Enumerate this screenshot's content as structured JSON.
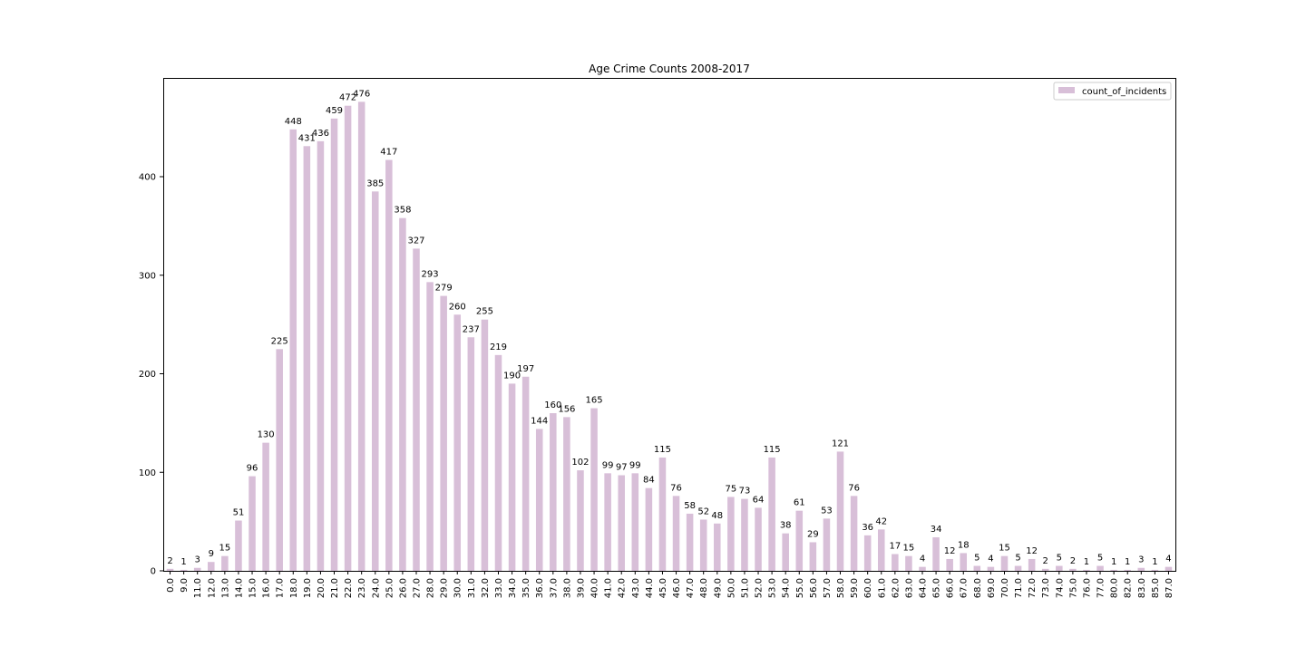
{
  "chart_data": {
    "type": "bar",
    "title": "Age Crime Counts 2008-2017",
    "xlabel": "",
    "ylabel": "",
    "ylim": [
      0,
      500
    ],
    "yticks": [
      0,
      100,
      200,
      300,
      400
    ],
    "grid": false,
    "legend_position": "top-right",
    "bar_color": "#d8bfd8",
    "categories": [
      "0.0",
      "9.0",
      "11.0",
      "12.0",
      "13.0",
      "14.0",
      "15.0",
      "16.0",
      "17.0",
      "18.0",
      "19.0",
      "20.0",
      "21.0",
      "22.0",
      "23.0",
      "24.0",
      "25.0",
      "26.0",
      "27.0",
      "28.0",
      "29.0",
      "30.0",
      "31.0",
      "32.0",
      "33.0",
      "34.0",
      "35.0",
      "36.0",
      "37.0",
      "38.0",
      "39.0",
      "40.0",
      "41.0",
      "42.0",
      "43.0",
      "44.0",
      "45.0",
      "46.0",
      "47.0",
      "48.0",
      "49.0",
      "50.0",
      "51.0",
      "52.0",
      "53.0",
      "54.0",
      "55.0",
      "56.0",
      "57.0",
      "58.0",
      "59.0",
      "60.0",
      "61.0",
      "62.0",
      "63.0",
      "64.0",
      "65.0",
      "66.0",
      "67.0",
      "68.0",
      "69.0",
      "70.0",
      "71.0",
      "72.0",
      "73.0",
      "74.0",
      "75.0",
      "76.0",
      "77.0",
      "80.0",
      "82.0",
      "83.0",
      "85.0",
      "87.0"
    ],
    "series": [
      {
        "name": "count_of_incidents",
        "values": [
          2,
          1,
          3,
          9,
          15,
          51,
          96,
          130,
          225,
          448,
          431,
          436,
          459,
          472,
          476,
          385,
          417,
          358,
          327,
          293,
          279,
          260,
          237,
          255,
          219,
          190,
          197,
          144,
          160,
          156,
          102,
          165,
          99,
          97,
          99,
          84,
          115,
          76,
          58,
          52,
          48,
          75,
          73,
          64,
          115,
          38,
          61,
          29,
          53,
          121,
          76,
          36,
          42,
          17,
          15,
          4,
          34,
          12,
          18,
          5,
          4,
          15,
          5,
          12,
          2,
          5,
          2,
          1,
          5,
          1,
          1,
          3,
          1,
          4
        ]
      }
    ]
  }
}
